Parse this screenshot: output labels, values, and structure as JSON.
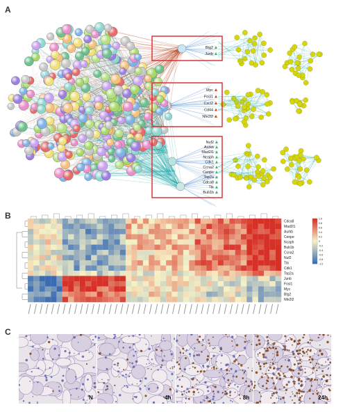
{
  "panels": {
    "a": "A",
    "b": "B",
    "c": "C"
  },
  "panel_a": {
    "box1_genes": [
      "Btg2",
      "Junb"
    ],
    "box2_genes": [
      "Myc",
      "Fosl1",
      "Cxcl2",
      "Cd44",
      "Nfe2l2"
    ],
    "box3_genes": [
      "Nuf2",
      "Aurkb",
      "Mad2l1",
      "Ncaph",
      "Cdk1",
      "Ccna2",
      "Cenpe",
      "Top2a",
      "Cdca8",
      "Ttk",
      "Bub1b"
    ],
    "colors": {
      "box": "#d9262a",
      "edge_red": "#b33a12",
      "edge_teal": "#1aa6a6",
      "edge_blue": "#4a8ad0",
      "cluster_node": "#d6d60f",
      "triangle_node": "#3cb371"
    }
  },
  "chart_data": {
    "type": "heatmap",
    "rows": [
      "Cdca8",
      "Mad2l1",
      "Aurkb",
      "Cenpe",
      "Ncaph",
      "Bub1b",
      "Ccna2",
      "Nuf2",
      "Ttk",
      "Cdk1",
      "Top2a",
      "Junb",
      "Fosl1",
      "Myc",
      "Btg2",
      "Nfe2l2"
    ],
    "colorbar": {
      "ticks": [
        "1.0",
        "0.8",
        "0.6",
        "0.4",
        "0.2",
        "0",
        "-0.2",
        "-0.4",
        "-0.6",
        "-0.8",
        "-1.0"
      ],
      "colors": [
        "#3a6cb4",
        "#f7f2c6",
        "#d73027"
      ]
    },
    "group_means": [
      [
        -0.1,
        -0.5,
        0.3,
        0.6,
        1.0
      ],
      [
        -0.1,
        -0.5,
        0.3,
        0.6,
        1.0
      ],
      [
        -0.1,
        -0.6,
        0.2,
        0.6,
        1.0
      ],
      [
        0.0,
        -0.4,
        0.3,
        0.6,
        1.0
      ],
      [
        0.0,
        -0.5,
        0.2,
        0.6,
        1.0
      ],
      [
        -0.1,
        -0.5,
        0.3,
        0.6,
        1.0
      ],
      [
        0.0,
        -0.5,
        0.2,
        0.6,
        1.0
      ],
      [
        0.0,
        -0.5,
        0.2,
        0.5,
        1.0
      ],
      [
        0.0,
        -0.5,
        0.3,
        0.6,
        1.0
      ],
      [
        0.0,
        -0.5,
        0.2,
        0.6,
        0.9
      ],
      [
        -0.1,
        -0.2,
        0.0,
        0.3,
        0.5
      ],
      [
        -0.9,
        0.9,
        0.0,
        0.0,
        -0.2
      ],
      [
        -0.9,
        0.9,
        0.0,
        -0.1,
        -0.3
      ],
      [
        -0.8,
        0.8,
        0.0,
        -0.1,
        -0.3
      ],
      [
        -0.8,
        0.7,
        0.1,
        -0.2,
        -0.4
      ],
      [
        -0.7,
        0.6,
        0.0,
        -0.1,
        -0.3
      ]
    ],
    "n_columns": 44
  },
  "panel_c": {
    "images": [
      {
        "label": "N"
      },
      {
        "label": "4h"
      },
      {
        "label": "8h"
      },
      {
        "label": "24h"
      }
    ]
  }
}
